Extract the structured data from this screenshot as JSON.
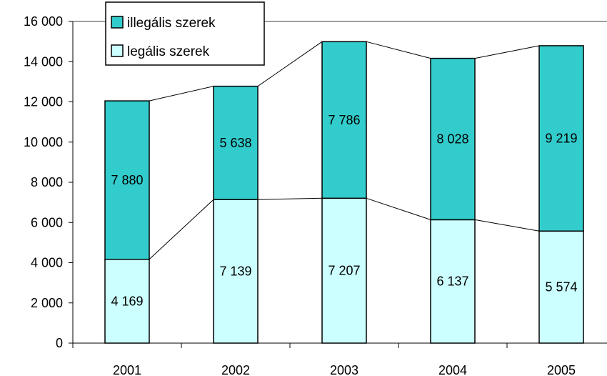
{
  "chart_data": {
    "type": "bar",
    "stacked": true,
    "categories": [
      "2001",
      "2002",
      "2003",
      "2004",
      "2005"
    ],
    "series": [
      {
        "name": "legális szerek",
        "values": [
          4169,
          7139,
          7207,
          6137,
          5574
        ],
        "labels": [
          "4 169",
          "7 139",
          "7 207",
          "6 137",
          "5 574"
        ],
        "color": "#ccffff"
      },
      {
        "name": "illegális szerek",
        "values": [
          7880,
          5638,
          7786,
          8028,
          9219
        ],
        "labels": [
          "7 880",
          "5 638",
          "7 786",
          "8 028",
          "9 219"
        ],
        "color": "#33cccc"
      }
    ],
    "series_lines": true,
    "ylim": [
      0,
      16000
    ],
    "yticks": [
      0,
      2000,
      4000,
      6000,
      8000,
      10000,
      12000,
      14000,
      16000
    ],
    "ytick_labels": [
      "0",
      "2 000",
      "4 000",
      "6 000",
      "8 000",
      "10 000",
      "12 000",
      "14 000",
      "16 000"
    ],
    "grid": false,
    "legend": {
      "position": "top-left",
      "entries": [
        "illegális szerek",
        "legális szerek"
      ]
    },
    "title": "",
    "xlabel": "",
    "ylabel": ""
  }
}
